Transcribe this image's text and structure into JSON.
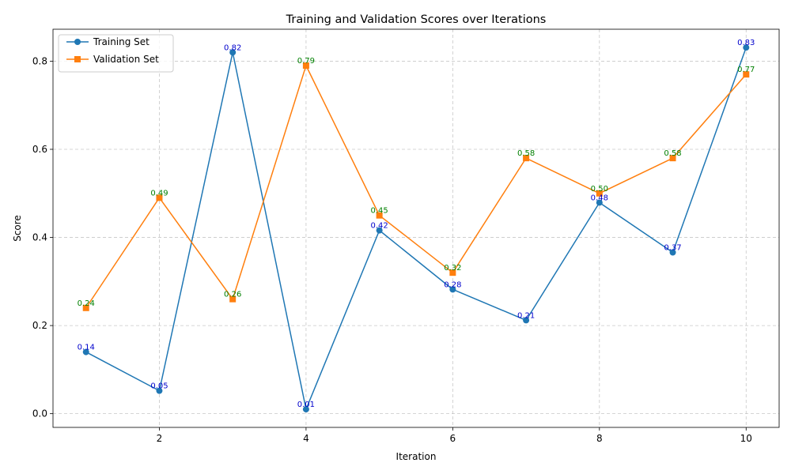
{
  "chart_data": {
    "type": "line",
    "title": "Training and Validation Scores over Iterations",
    "xlabel": "Iteration",
    "ylabel": "Score",
    "x": [
      1,
      2,
      3,
      4,
      5,
      6,
      7,
      8,
      9,
      10
    ],
    "xlim": [
      0.55,
      10.45
    ],
    "ylim": [
      -0.0311,
      0.8725
    ],
    "xticks": [
      2,
      4,
      6,
      8,
      10
    ],
    "xtick_labels": [
      "2",
      "4",
      "6",
      "8",
      "10"
    ],
    "yticks": [
      0.0,
      0.2,
      0.4,
      0.6,
      0.8
    ],
    "ytick_labels": [
      "0.0",
      "0.2",
      "0.4",
      "0.6",
      "0.8"
    ],
    "grid": true,
    "legend_position": "top-left",
    "series": [
      {
        "name": "Training Set",
        "marker": "circle",
        "color": "#1f77b4",
        "label_color": "#0000cc",
        "values": [
          0.14,
          0.052,
          0.82,
          0.01,
          0.416,
          0.282,
          0.212,
          0.479,
          0.366,
          0.831
        ],
        "labels": [
          "0.14",
          "0.05",
          "0.82",
          "0.01",
          "0.42",
          "0.28",
          "0.21",
          "0.48",
          "0.37",
          "0.83"
        ]
      },
      {
        "name": "Validation Set",
        "marker": "square",
        "color": "#ff7f0e",
        "label_color": "#008000",
        "values": [
          0.24,
          0.49,
          0.26,
          0.79,
          0.45,
          0.32,
          0.58,
          0.5,
          0.58,
          0.77
        ],
        "labels": [
          "0.24",
          "0.49",
          "0.26",
          "0.79",
          "0.45",
          "0.32",
          "0.58",
          "0.50",
          "0.58",
          "0.77"
        ]
      }
    ]
  }
}
